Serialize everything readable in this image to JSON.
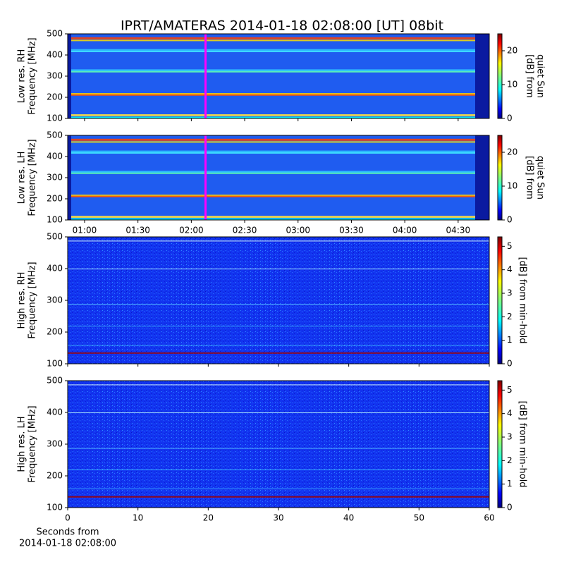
{
  "title": "IPRT/AMATERAS 2014-01-18 02:08:00 [UT]   08bit",
  "chart_data": [
    {
      "type": "heatmap",
      "ylabel": [
        "Low res. RH",
        "Frequency [MHz]"
      ],
      "xlim": [
        50.5,
        287.5
      ],
      "xticks": [
        {
          "value": 60,
          "label": "01:00"
        },
        {
          "value": 90,
          "label": "01:30"
        },
        {
          "value": 120,
          "label": "02:00"
        },
        {
          "value": 150,
          "label": "02:30"
        },
        {
          "value": 180,
          "label": "03:00"
        },
        {
          "value": 210,
          "label": "03:30"
        },
        {
          "value": 240,
          "label": "04:00"
        },
        {
          "value": 270,
          "label": "04:30"
        }
      ],
      "xtick_labels": false,
      "cursor": 128,
      "ylim": [
        100,
        500
      ],
      "yticks": [
        100,
        200,
        300,
        400,
        500
      ],
      "colorbar": {
        "label": [
          "[dB] from",
          "quiet Sun"
        ],
        "lim": [
          0,
          25
        ],
        "ticks": [
          0,
          10,
          20
        ]
      }
    },
    {
      "type": "heatmap",
      "ylabel": [
        "Low res. LH",
        "Frequency [MHz]"
      ],
      "xlim": [
        50.5,
        287.5
      ],
      "xticks": [
        {
          "value": 60,
          "label": "01:00"
        },
        {
          "value": 90,
          "label": "01:30"
        },
        {
          "value": 120,
          "label": "02:00"
        },
        {
          "value": 150,
          "label": "02:30"
        },
        {
          "value": 180,
          "label": "03:00"
        },
        {
          "value": 210,
          "label": "03:30"
        },
        {
          "value": 240,
          "label": "04:00"
        },
        {
          "value": 270,
          "label": "04:30"
        }
      ],
      "xtick_labels": true,
      "cursor": 128,
      "ylim": [
        100,
        500
      ],
      "yticks": [
        100,
        200,
        300,
        400,
        500
      ],
      "colorbar": {
        "label": [
          "[dB] from",
          "quiet Sun"
        ],
        "lim": [
          0,
          25
        ],
        "ticks": [
          0,
          10,
          20
        ]
      }
    },
    {
      "type": "heatmap",
      "ylabel": [
        "High res. RH",
        "Frequency [MHz]"
      ],
      "xlim": [
        0,
        60
      ],
      "xticks": [
        0,
        10,
        20,
        30,
        40,
        50,
        60
      ],
      "xtick_labels": false,
      "ylim": [
        100,
        500
      ],
      "yticks": [
        100,
        200,
        300,
        400,
        500
      ],
      "colorbar": {
        "label": [
          "[dB] from min-hold"
        ],
        "lim": [
          0,
          5.4
        ],
        "ticks": [
          0,
          1,
          2,
          3,
          4,
          5
        ]
      }
    },
    {
      "type": "heatmap",
      "ylabel": [
        "High res. LH",
        "Frequency [MHz]"
      ],
      "xlabel": [
        "Seconds from",
        "2014-01-18 02:08:00"
      ],
      "xlim": [
        0,
        60
      ],
      "xticks": [
        0,
        10,
        20,
        30,
        40,
        50,
        60
      ],
      "xtick_labels": true,
      "ylim": [
        100,
        500
      ],
      "yticks": [
        100,
        200,
        300,
        400,
        500
      ],
      "colorbar": {
        "label": [
          "[dB] from min-hold"
        ],
        "lim": [
          0,
          5.4
        ],
        "ticks": [
          0,
          1,
          2,
          3,
          4,
          5
        ]
      }
    }
  ]
}
